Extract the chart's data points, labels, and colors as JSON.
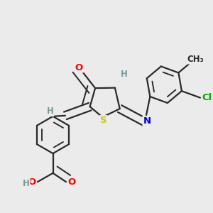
{
  "bg_color": "#ebebeb",
  "bond_color": "#2a2a2a",
  "bond_width": 1.6,
  "atom_colors": {
    "O": "#ff0000",
    "N": "#0000cc",
    "S": "#cccc00",
    "Cl": "#00aa00",
    "C": "#2a2a2a",
    "H": "#7a9a9a"
  },
  "font_size": 9.5,
  "font_size_small": 8.5
}
